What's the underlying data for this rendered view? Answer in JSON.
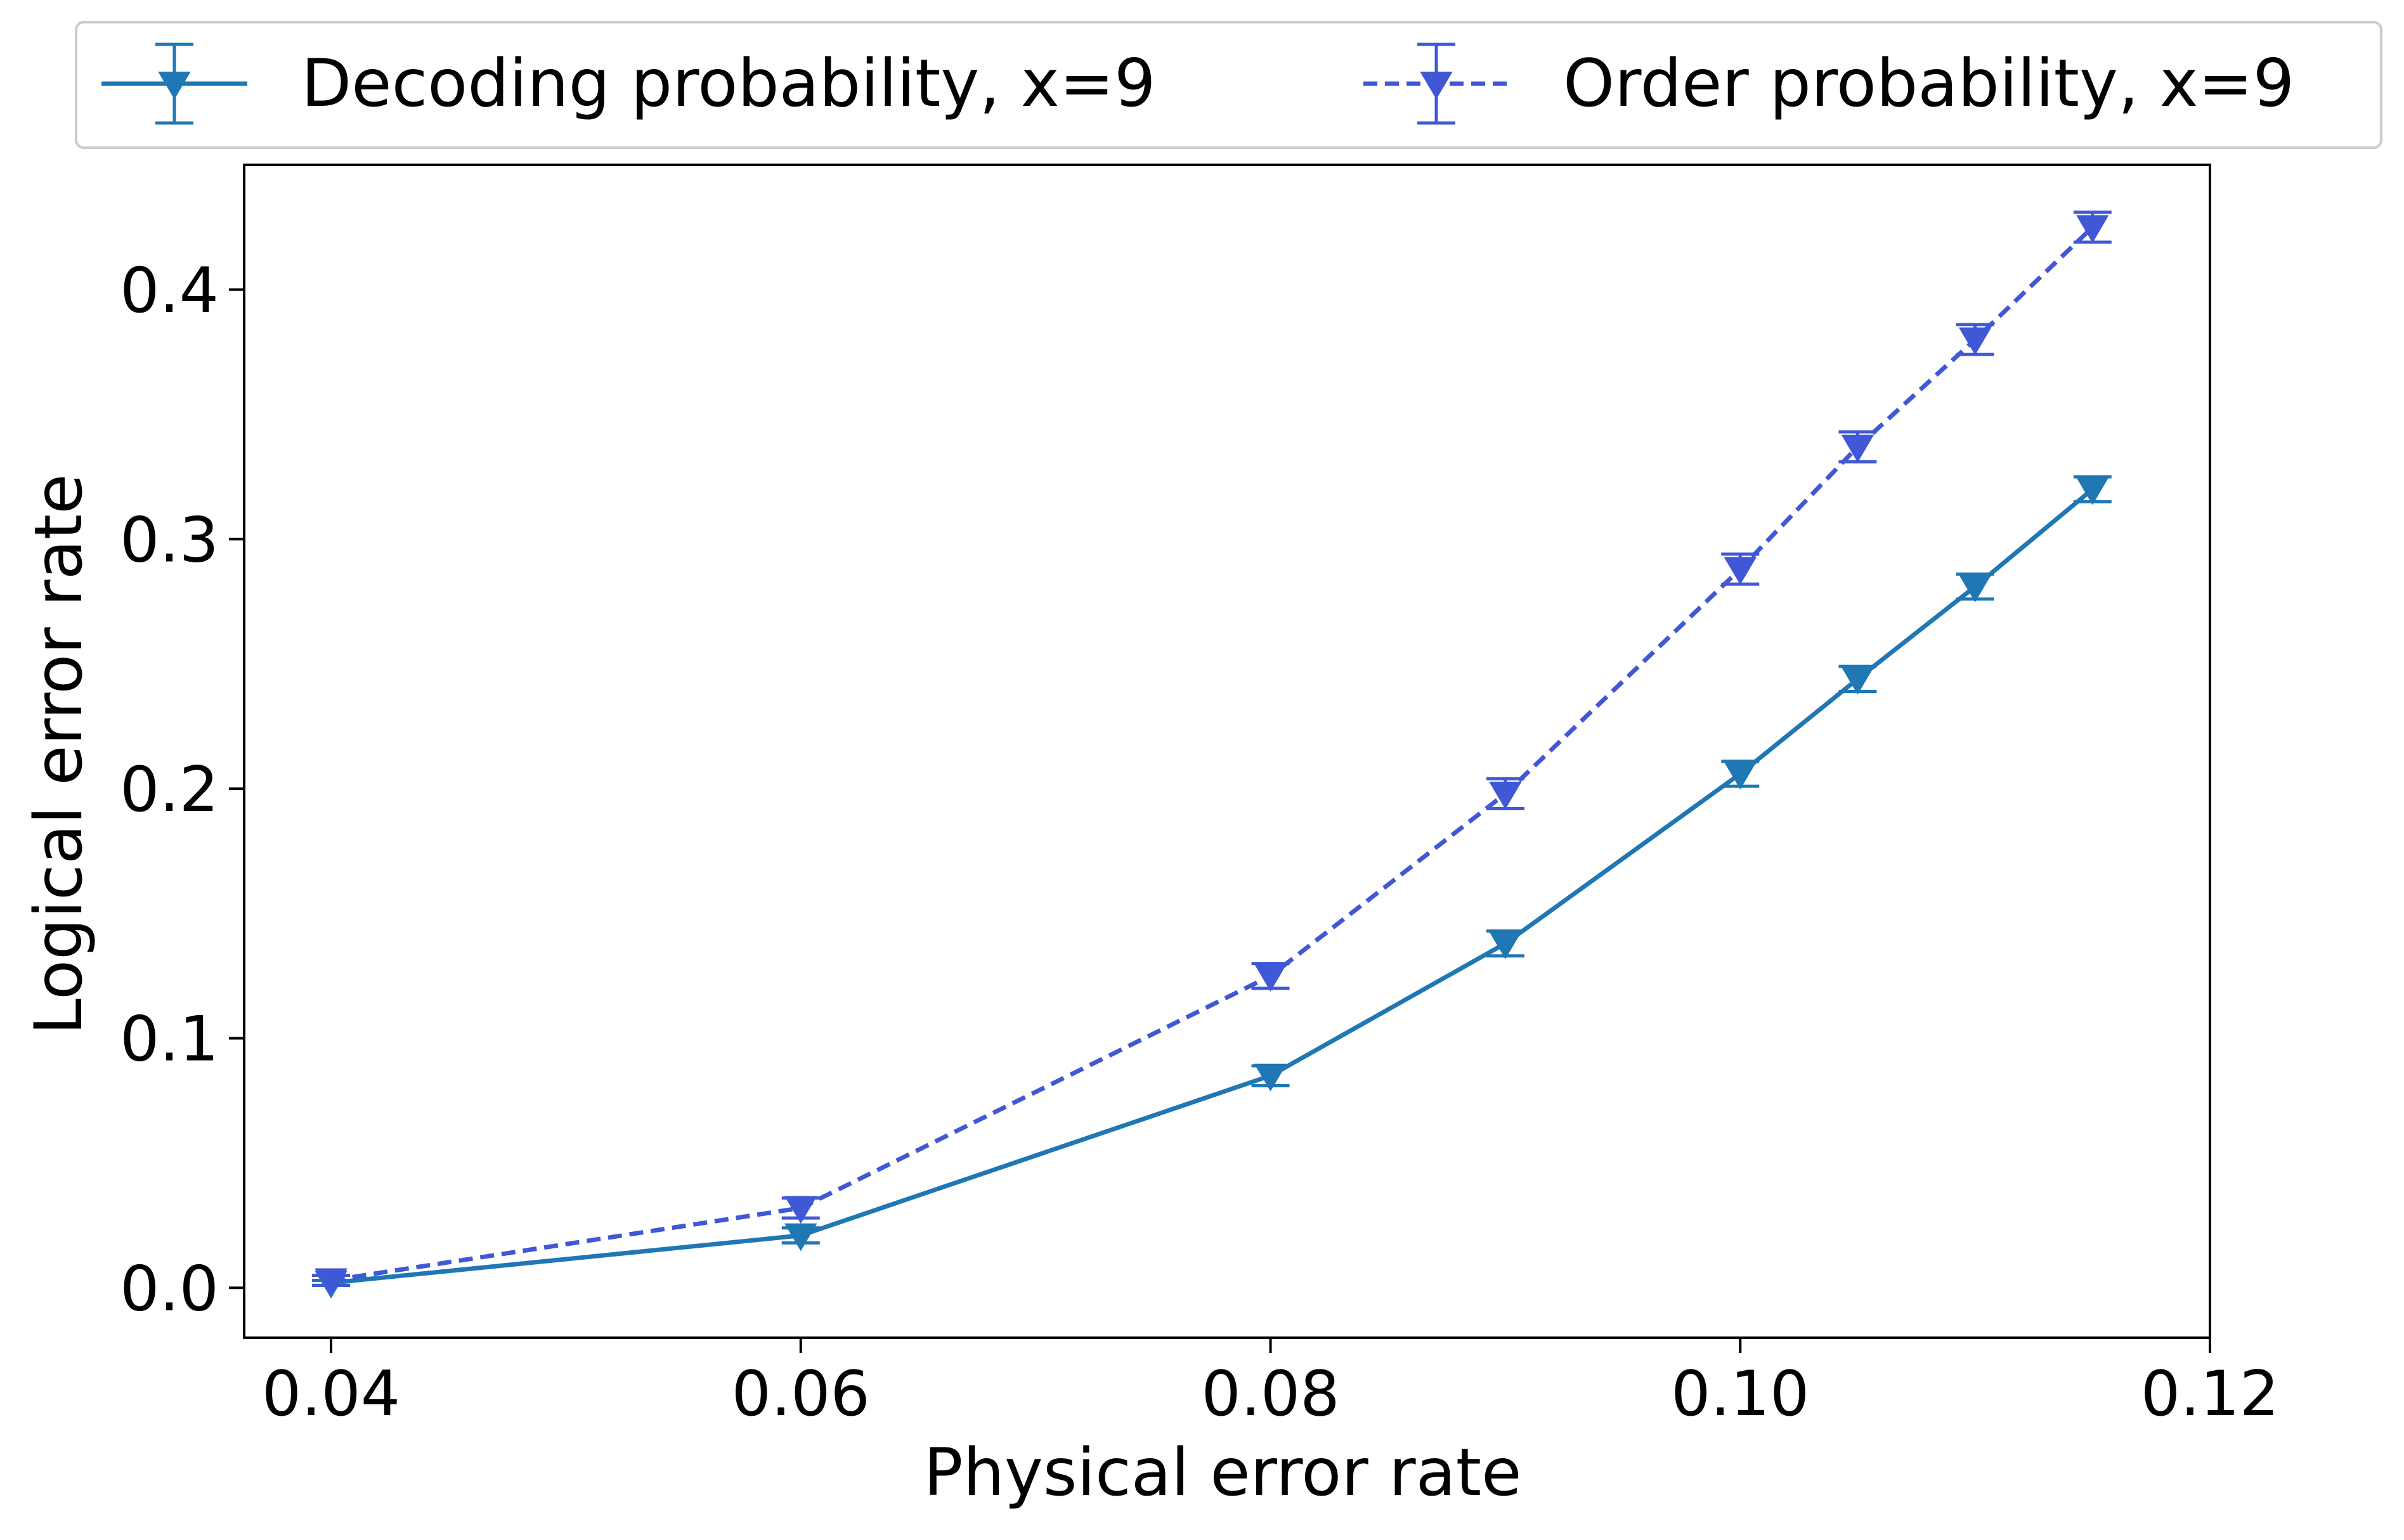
{
  "chart_data": {
    "type": "line",
    "title": "",
    "xlabel": "Physical error rate",
    "ylabel": "Logical error rate",
    "xlim": [
      0.0363,
      0.12
    ],
    "ylim": [
      -0.02,
      0.45
    ],
    "xticks": [
      0.04,
      0.06,
      0.08,
      0.1,
      0.12
    ],
    "xtick_labels": [
      "0.04",
      "0.06",
      "0.08",
      "0.10",
      "0.12"
    ],
    "yticks": [
      0.0,
      0.1,
      0.2,
      0.3,
      0.4
    ],
    "ytick_labels": [
      "0.0",
      "0.1",
      "0.2",
      "0.3",
      "0.4"
    ],
    "grid": false,
    "legend_position": "top, above plot, 2 columns",
    "marker": "down-triangle",
    "series": [
      {
        "name": "Decoding probability, x=9",
        "color": "#1f77b4",
        "line_style": "solid",
        "x": [
          0.04,
          0.06,
          0.08,
          0.09,
          0.1,
          0.105,
          0.11,
          0.115
        ],
        "y": [
          0.002,
          0.021,
          0.085,
          0.138,
          0.206,
          0.244,
          0.281,
          0.32
        ],
        "error": [
          0.001,
          0.003,
          0.004,
          0.005,
          0.005,
          0.005,
          0.005,
          0.005
        ]
      },
      {
        "name": "Order probability, x=9",
        "color": "#4058d6",
        "line_style": "dashed",
        "x": [
          0.04,
          0.06,
          0.08,
          0.09,
          0.1,
          0.105,
          0.11,
          0.115
        ],
        "y": [
          0.003,
          0.032,
          0.125,
          0.198,
          0.288,
          0.337,
          0.38,
          0.425
        ],
        "error": [
          0.002,
          0.004,
          0.005,
          0.006,
          0.006,
          0.006,
          0.006,
          0.006
        ]
      }
    ]
  }
}
